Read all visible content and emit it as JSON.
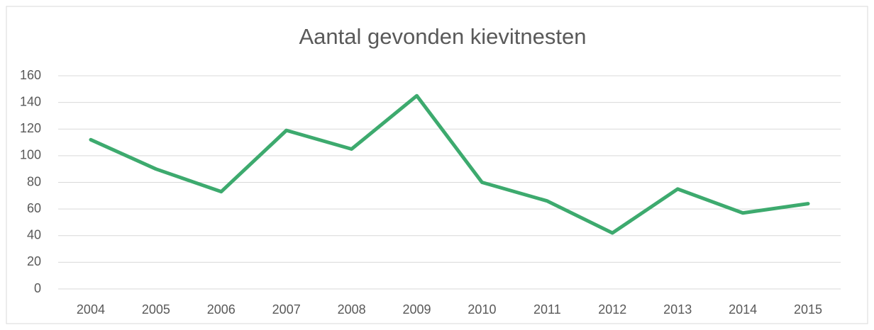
{
  "chart_data": {
    "type": "line",
    "title": "Aantal gevonden kievitnesten",
    "categories": [
      "2004",
      "2005",
      "2006",
      "2007",
      "2008",
      "2009",
      "2010",
      "2011",
      "2012",
      "2013",
      "2014",
      "2015"
    ],
    "values": [
      112,
      90,
      73,
      119,
      105,
      145,
      80,
      66,
      42,
      75,
      57,
      64
    ],
    "color": "#3daa6e",
    "ylim": [
      0,
      160
    ],
    "yticks": [
      0,
      20,
      40,
      60,
      80,
      100,
      120,
      140,
      160
    ],
    "grid": true
  }
}
